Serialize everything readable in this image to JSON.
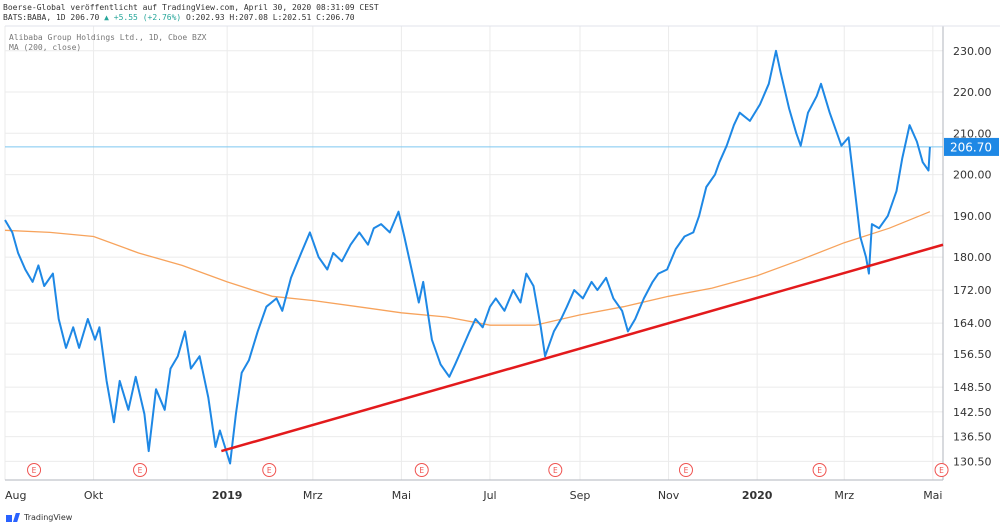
{
  "header": {
    "source_line": "Boerse-Global veröffentlicht auf TradingView.com, April 30, 2020 08:31:09 CEST",
    "quote_prefix": "BATS:BABA, 1D 206.70",
    "quote_change": "▲ +5.55 (+2.76%)",
    "quote_ohlc": "O:202.93 H:207.08 L:202.51 C:206.70"
  },
  "legend": {
    "symbol": "Alibaba Group Holdings Ltd., 1D, Cboe BZX",
    "indicator": "MA (200, close)"
  },
  "footer": {
    "brand": "TradingView"
  },
  "colors": {
    "price": "#1e88e5",
    "ma": "#f7a35c",
    "trendline": "#e31a1c",
    "last_price_badge": "#1e88e5",
    "earnings_marker": "#ef5350",
    "grid": "#ebebeb"
  },
  "chart_data": {
    "type": "line",
    "ylim": [
      126,
      236
    ],
    "y_ticks": [
      "230.00",
      "220.00",
      "210.00",
      "200.00",
      "190.00",
      "180.00",
      "172.00",
      "164.00",
      "156.50",
      "148.50",
      "142.50",
      "136.50",
      "130.50"
    ],
    "y_tick_values": [
      230,
      220,
      210,
      200,
      190,
      180,
      172,
      164,
      156.5,
      148.5,
      142.5,
      136.5,
      130.5
    ],
    "x_range": [
      "2018-08-01",
      "2020-05-08"
    ],
    "x_ticks": [
      {
        "label": "Aug",
        "date": "2018-08-01"
      },
      {
        "label": "Okt",
        "date": "2018-10-01"
      },
      {
        "label": "2019",
        "date": "2019-01-01",
        "bold": true
      },
      {
        "label": "Mrz",
        "date": "2019-03-01"
      },
      {
        "label": "Mai",
        "date": "2019-05-01"
      },
      {
        "label": "Jul",
        "date": "2019-07-01"
      },
      {
        "label": "Sep",
        "date": "2019-09-01"
      },
      {
        "label": "Nov",
        "date": "2019-11-01"
      },
      {
        "label": "2020",
        "date": "2020-01-01",
        "bold": true
      },
      {
        "label": "Mrz",
        "date": "2020-03-01"
      },
      {
        "label": "Mai",
        "date": "2020-05-01"
      }
    ],
    "last_price": "206.70",
    "last_price_value": 206.7,
    "series": [
      {
        "name": "Alibaba Group Holdings Ltd., 1D, Cboe BZX",
        "points": [
          [
            "2018-08-01",
            189
          ],
          [
            "2018-08-06",
            186
          ],
          [
            "2018-08-10",
            181
          ],
          [
            "2018-08-15",
            177
          ],
          [
            "2018-08-20",
            174
          ],
          [
            "2018-08-24",
            178
          ],
          [
            "2018-08-28",
            173
          ],
          [
            "2018-09-03",
            176
          ],
          [
            "2018-09-07",
            165
          ],
          [
            "2018-09-12",
            158
          ],
          [
            "2018-09-17",
            163
          ],
          [
            "2018-09-21",
            158
          ],
          [
            "2018-09-27",
            165
          ],
          [
            "2018-10-02",
            160
          ],
          [
            "2018-10-05",
            163
          ],
          [
            "2018-10-10",
            150
          ],
          [
            "2018-10-15",
            140
          ],
          [
            "2018-10-19",
            150
          ],
          [
            "2018-10-25",
            143
          ],
          [
            "2018-10-30",
            151
          ],
          [
            "2018-11-05",
            142
          ],
          [
            "2018-11-08",
            133
          ],
          [
            "2018-11-13",
            148
          ],
          [
            "2018-11-19",
            143
          ],
          [
            "2018-11-23",
            153
          ],
          [
            "2018-11-28",
            156
          ],
          [
            "2018-12-03",
            162
          ],
          [
            "2018-12-07",
            153
          ],
          [
            "2018-12-13",
            156
          ],
          [
            "2018-12-19",
            146
          ],
          [
            "2018-12-24",
            134
          ],
          [
            "2018-12-27",
            138
          ],
          [
            "2019-01-03",
            130
          ],
          [
            "2019-01-07",
            142
          ],
          [
            "2019-01-11",
            152
          ],
          [
            "2019-01-16",
            155
          ],
          [
            "2019-01-22",
            162
          ],
          [
            "2019-01-28",
            168
          ],
          [
            "2019-02-04",
            170
          ],
          [
            "2019-02-08",
            167
          ],
          [
            "2019-02-14",
            175
          ],
          [
            "2019-02-21",
            181
          ],
          [
            "2019-02-27",
            186
          ],
          [
            "2019-03-05",
            180
          ],
          [
            "2019-03-11",
            177
          ],
          [
            "2019-03-15",
            181
          ],
          [
            "2019-03-21",
            179
          ],
          [
            "2019-03-27",
            183
          ],
          [
            "2019-04-02",
            186
          ],
          [
            "2019-04-08",
            183
          ],
          [
            "2019-04-12",
            187
          ],
          [
            "2019-04-17",
            188
          ],
          [
            "2019-04-23",
            186
          ],
          [
            "2019-04-29",
            191
          ],
          [
            "2019-05-03",
            185
          ],
          [
            "2019-05-08",
            177
          ],
          [
            "2019-05-13",
            169
          ],
          [
            "2019-05-16",
            174
          ],
          [
            "2019-05-22",
            160
          ],
          [
            "2019-05-28",
            154
          ],
          [
            "2019-06-03",
            151
          ],
          [
            "2019-06-07",
            154
          ],
          [
            "2019-06-12",
            158
          ],
          [
            "2019-06-17",
            162
          ],
          [
            "2019-06-21",
            165
          ],
          [
            "2019-06-26",
            163
          ],
          [
            "2019-07-01",
            168
          ],
          [
            "2019-07-05",
            170
          ],
          [
            "2019-07-11",
            167
          ],
          [
            "2019-07-17",
            172
          ],
          [
            "2019-07-22",
            169
          ],
          [
            "2019-07-26",
            176
          ],
          [
            "2019-07-31",
            173
          ],
          [
            "2019-08-05",
            163
          ],
          [
            "2019-08-08",
            156
          ],
          [
            "2019-08-14",
            162
          ],
          [
            "2019-08-19",
            165
          ],
          [
            "2019-08-23",
            168
          ],
          [
            "2019-08-28",
            172
          ],
          [
            "2019-09-03",
            170
          ],
          [
            "2019-09-09",
            174
          ],
          [
            "2019-09-13",
            172
          ],
          [
            "2019-09-19",
            175
          ],
          [
            "2019-09-24",
            170
          ],
          [
            "2019-09-30",
            167
          ],
          [
            "2019-10-04",
            162
          ],
          [
            "2019-10-09",
            165
          ],
          [
            "2019-10-15",
            170
          ],
          [
            "2019-10-21",
            174
          ],
          [
            "2019-10-25",
            176
          ],
          [
            "2019-10-31",
            177
          ],
          [
            "2019-11-06",
            182
          ],
          [
            "2019-11-12",
            185
          ],
          [
            "2019-11-18",
            186
          ],
          [
            "2019-11-22",
            190
          ],
          [
            "2019-11-27",
            197
          ],
          [
            "2019-12-03",
            200
          ],
          [
            "2019-12-06",
            203
          ],
          [
            "2019-12-11",
            207
          ],
          [
            "2019-12-16",
            212
          ],
          [
            "2019-12-20",
            215
          ],
          [
            "2019-12-27",
            213
          ],
          [
            "2020-01-03",
            217
          ],
          [
            "2020-01-09",
            222
          ],
          [
            "2020-01-14",
            230
          ],
          [
            "2020-01-17",
            225
          ],
          [
            "2020-01-23",
            216
          ],
          [
            "2020-01-28",
            210
          ],
          [
            "2020-01-31",
            207
          ],
          [
            "2020-02-05",
            215
          ],
          [
            "2020-02-11",
            219
          ],
          [
            "2020-02-14",
            222
          ],
          [
            "2020-02-20",
            215
          ],
          [
            "2020-02-25",
            210
          ],
          [
            "2020-02-28",
            207
          ],
          [
            "2020-03-04",
            209
          ],
          [
            "2020-03-09",
            194
          ],
          [
            "2020-03-12",
            185
          ],
          [
            "2020-03-16",
            180
          ],
          [
            "2020-03-18",
            176
          ],
          [
            "2020-03-20",
            188
          ],
          [
            "2020-03-25",
            187
          ],
          [
            "2020-03-31",
            190
          ],
          [
            "2020-04-06",
            196
          ],
          [
            "2020-04-10",
            204
          ],
          [
            "2020-04-15",
            212
          ],
          [
            "2020-04-20",
            208
          ],
          [
            "2020-04-24",
            203
          ],
          [
            "2020-04-28",
            201
          ],
          [
            "2020-04-29",
            206.7
          ]
        ]
      },
      {
        "name": "MA (200, close)",
        "points": [
          [
            "2018-08-01",
            186.5
          ],
          [
            "2018-09-01",
            186
          ],
          [
            "2018-10-01",
            185
          ],
          [
            "2018-11-01",
            181
          ],
          [
            "2018-12-01",
            178
          ],
          [
            "2019-01-01",
            174
          ],
          [
            "2019-02-01",
            170.5
          ],
          [
            "2019-03-01",
            169.5
          ],
          [
            "2019-04-01",
            168
          ],
          [
            "2019-05-01",
            166.5
          ],
          [
            "2019-06-01",
            165.5
          ],
          [
            "2019-07-01",
            163.5
          ],
          [
            "2019-08-01",
            163.5
          ],
          [
            "2019-09-01",
            166
          ],
          [
            "2019-10-01",
            168
          ],
          [
            "2019-11-01",
            170.5
          ],
          [
            "2019-12-01",
            172.5
          ],
          [
            "2020-01-01",
            175.5
          ],
          [
            "2020-02-01",
            179.5
          ],
          [
            "2020-03-01",
            183.5
          ],
          [
            "2020-04-01",
            187
          ],
          [
            "2020-04-29",
            191
          ]
        ]
      }
    ],
    "trendline": {
      "start": [
        "2018-12-28",
        133
      ],
      "end": [
        "2020-05-08",
        183
      ]
    },
    "earnings_markers": {
      "label": "E",
      "dates": [
        "2018-08-21",
        "2018-11-02",
        "2019-01-30",
        "2019-05-15",
        "2019-08-15",
        "2019-11-13",
        "2020-02-13",
        "2020-05-07"
      ]
    }
  }
}
